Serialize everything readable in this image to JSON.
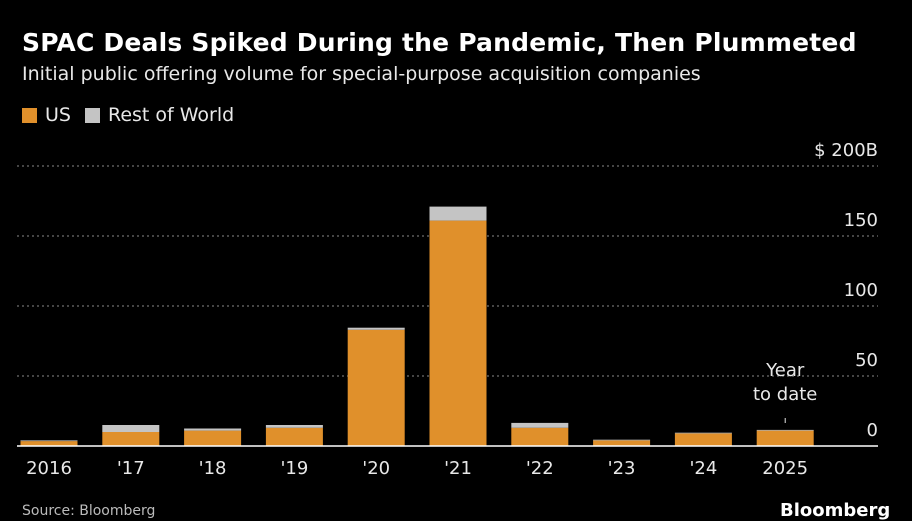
{
  "colors": {
    "us": "#e0902b",
    "rest_of_world": "#c4c4c4",
    "grid": "#8a8a8a",
    "axis": "#ffffff",
    "text": "#e8e8e8"
  },
  "chart_data": {
    "type": "bar",
    "stacked": true,
    "title": "SPAC Deals Spiked During the Pandemic, Then Plummeted",
    "subtitle": "Initial public offering volume for special-purpose acquisition companies",
    "categories": [
      "2016",
      "'17",
      "'18",
      "'19",
      "'20",
      "'21",
      "'22",
      "'23",
      "'24",
      "2025"
    ],
    "series": [
      {
        "name": "US",
        "values": [
          3.5,
          10,
          11,
          13,
          83,
          161,
          13,
          4,
          9,
          11
        ]
      },
      {
        "name": "Rest of World",
        "values": [
          0.5,
          5,
          1.5,
          2,
          1.5,
          10,
          3.5,
          0.5,
          0.5,
          0.5
        ]
      }
    ],
    "ylim": [
      0,
      200
    ],
    "y_ticks": [
      0,
      50,
      100,
      150,
      200
    ],
    "y_tick_labels": [
      "0",
      "50",
      "100",
      "150",
      "$ 200B"
    ],
    "grid": true,
    "legend_position": "top-left",
    "y_axis_side": "right",
    "annotation": {
      "category": "2025",
      "lines": [
        "Year",
        "to date"
      ]
    }
  },
  "footer": {
    "source": "Source: Bloomberg",
    "brand": "Bloomberg"
  }
}
